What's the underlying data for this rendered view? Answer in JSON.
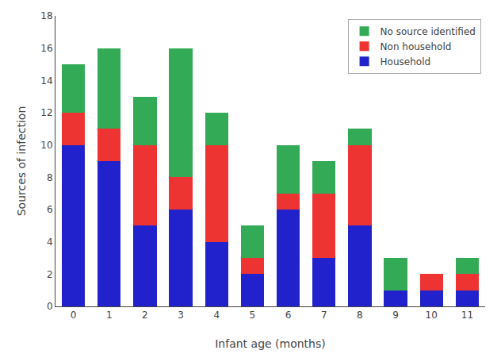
{
  "chart_data": {
    "type": "bar",
    "stacked": true,
    "xlabel": "Infant age (months)",
    "ylabel": "Sources of infection",
    "categories": [
      "0",
      "1",
      "2",
      "3",
      "4",
      "5",
      "6",
      "7",
      "8",
      "9",
      "10",
      "11"
    ],
    "series": [
      {
        "name": "Household",
        "color": "#2222cc",
        "values": [
          10,
          9,
          5,
          6,
          4,
          2,
          6,
          3,
          5,
          1,
          1,
          1
        ]
      },
      {
        "name": "Non household",
        "color": "#ee3333",
        "values": [
          2,
          2,
          5,
          2,
          6,
          1,
          1,
          4,
          5,
          0,
          1,
          1
        ]
      },
      {
        "name": "No source identified",
        "color": "#33aa55",
        "values": [
          3,
          5,
          3,
          8,
          2,
          2,
          3,
          2,
          1,
          2,
          0,
          1
        ]
      }
    ],
    "ylim": [
      0,
      18
    ],
    "yticks": [
      0,
      2,
      4,
      6,
      8,
      10,
      12,
      14,
      16,
      18
    ],
    "grid": false,
    "legend": "upper right"
  }
}
